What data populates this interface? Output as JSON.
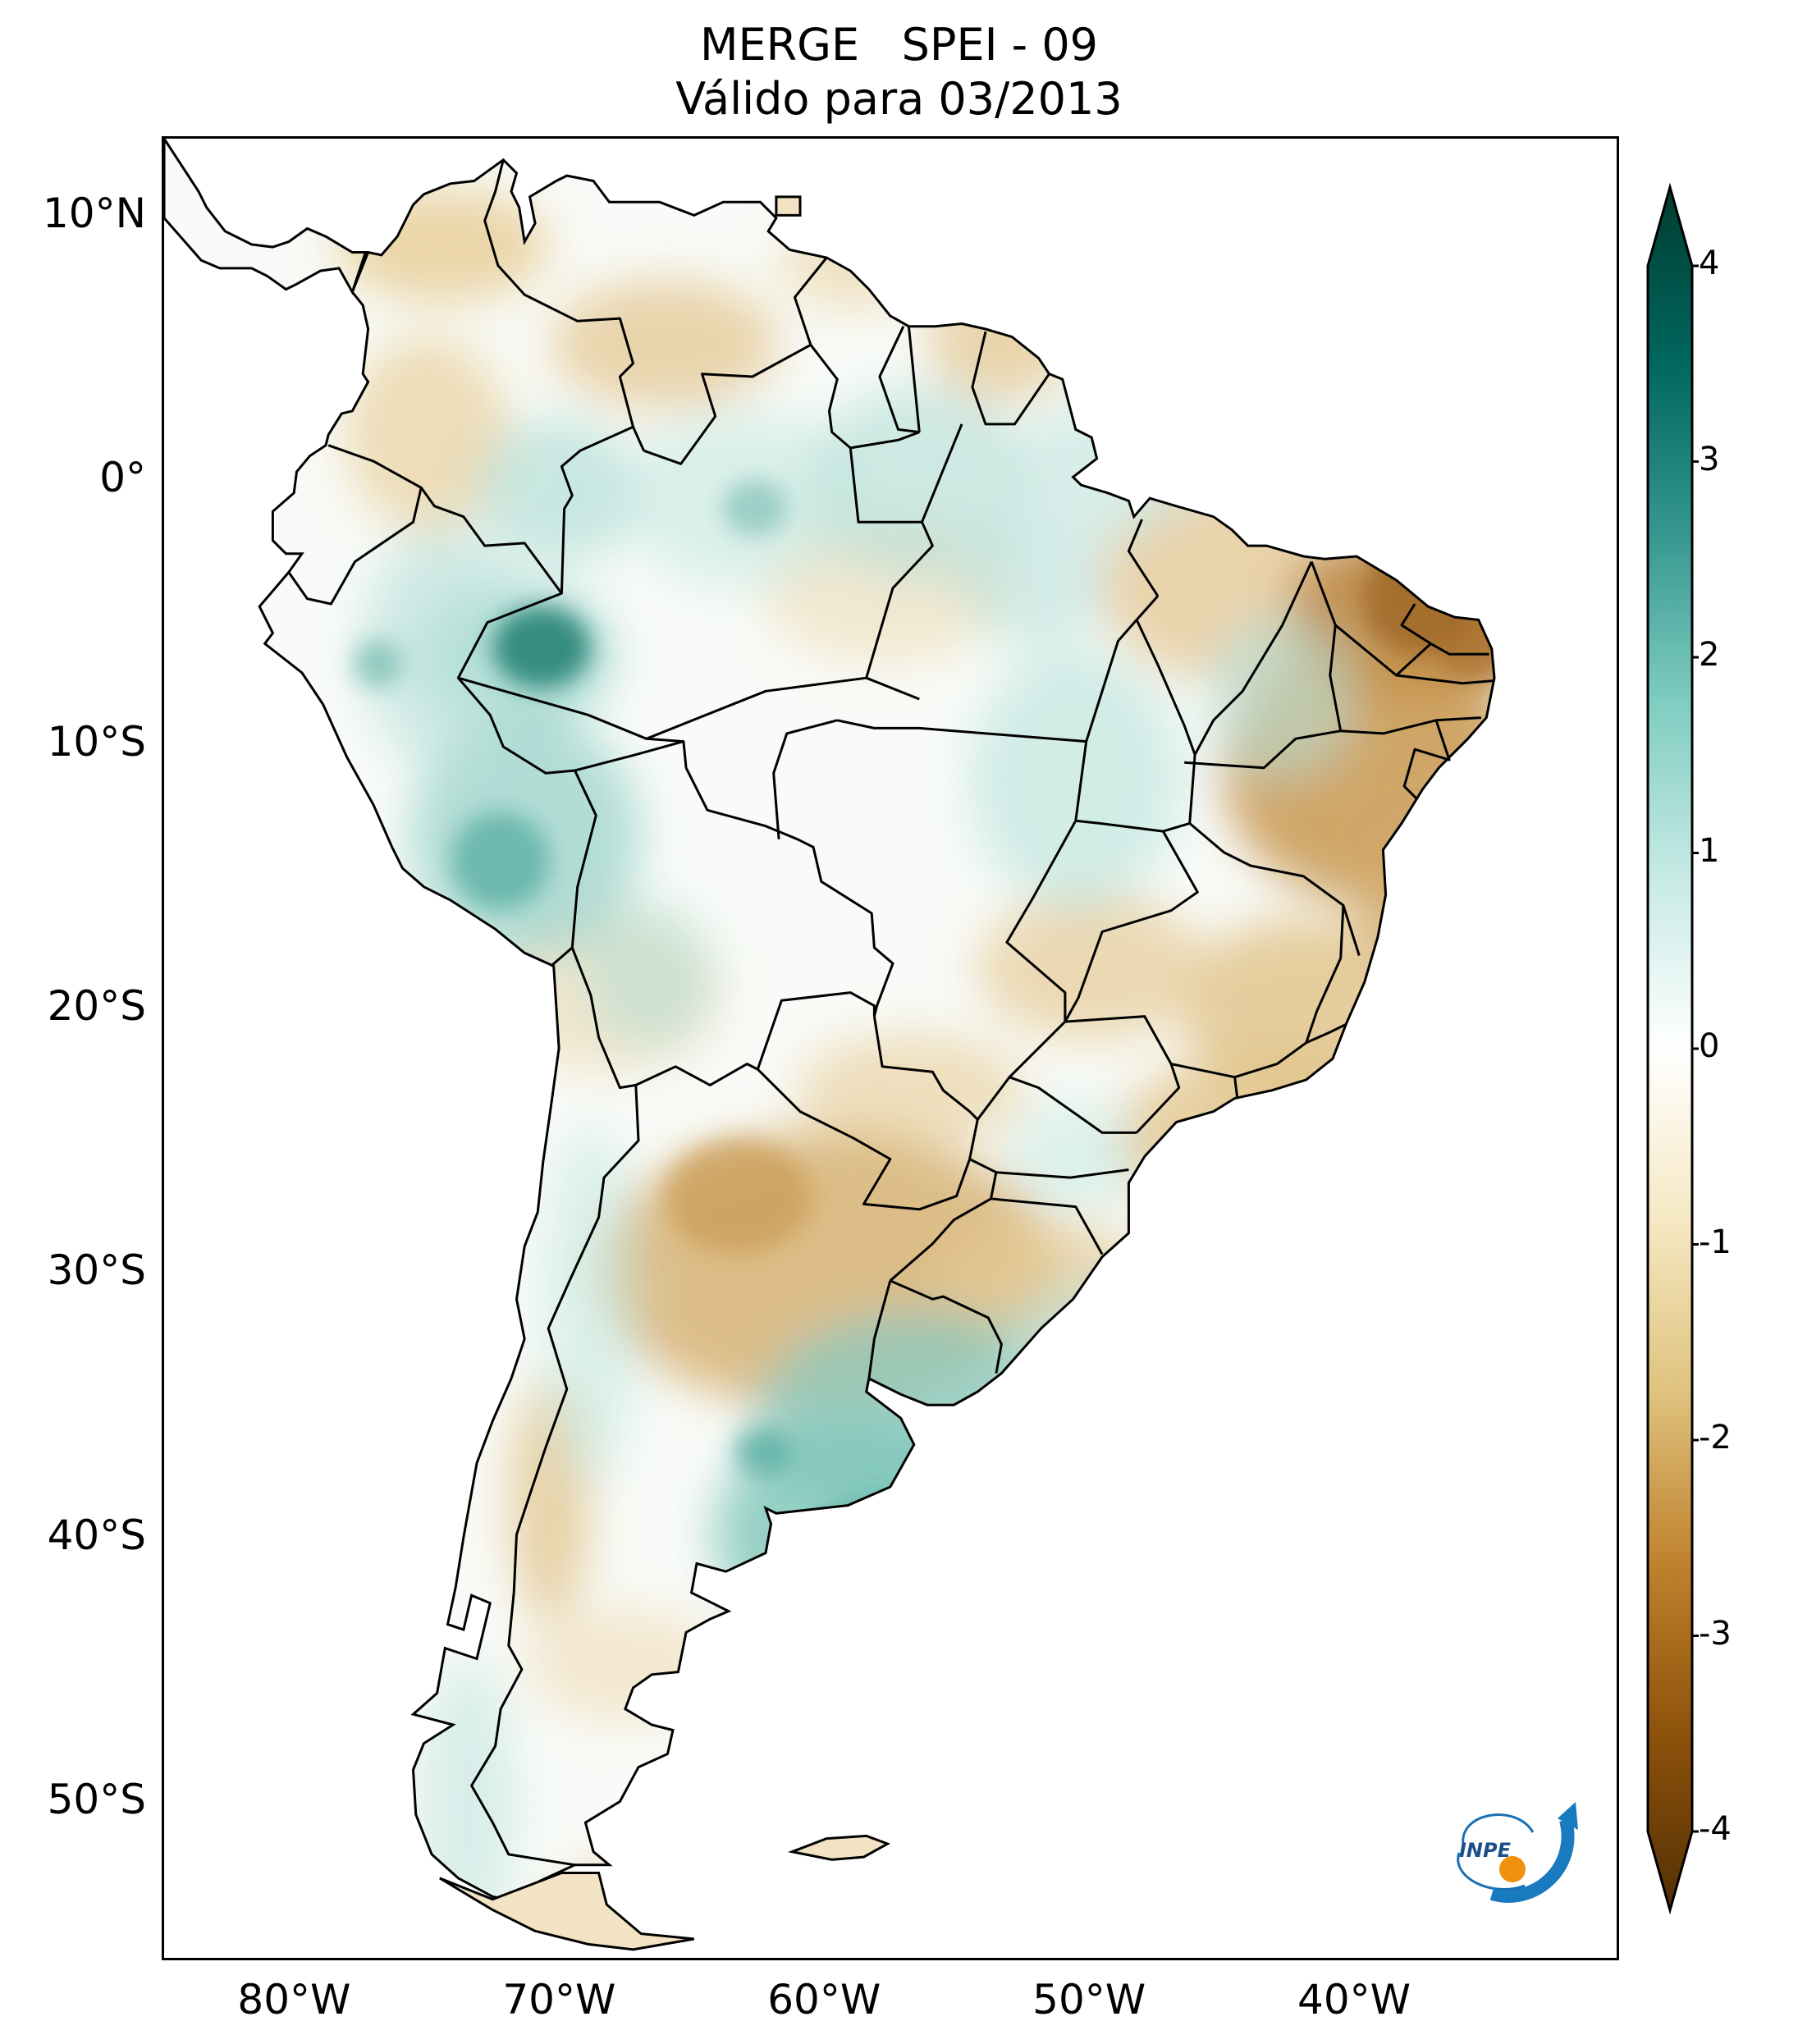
{
  "title": {
    "line1": "MERGE   SPEI - 09",
    "line2": "Válido para 03/2013"
  },
  "map": {
    "lat_ticks": [
      "10°N",
      "0°",
      "10°S",
      "20°S",
      "30°S",
      "40°S",
      "50°S"
    ],
    "lon_ticks": [
      "80°W",
      "70°W",
      "60°W",
      "50°W",
      "40°W"
    ],
    "extent": {
      "lon_min": -85,
      "lon_max": -30,
      "lat_min": -56,
      "lat_max": 13
    }
  },
  "colorbar": {
    "ticks": [
      "4",
      "3",
      "2",
      "1",
      "0",
      "-1",
      "-2",
      "-3",
      "-4"
    ],
    "colors": [
      "#543005",
      "#8c510a",
      "#bf812d",
      "#dfc27d",
      "#f6e8c3",
      "#ffffff",
      "#c7eae5",
      "#80cdc1",
      "#35978f",
      "#01665e",
      "#003c30"
    ]
  },
  "logo": {
    "text": "INPE"
  }
}
